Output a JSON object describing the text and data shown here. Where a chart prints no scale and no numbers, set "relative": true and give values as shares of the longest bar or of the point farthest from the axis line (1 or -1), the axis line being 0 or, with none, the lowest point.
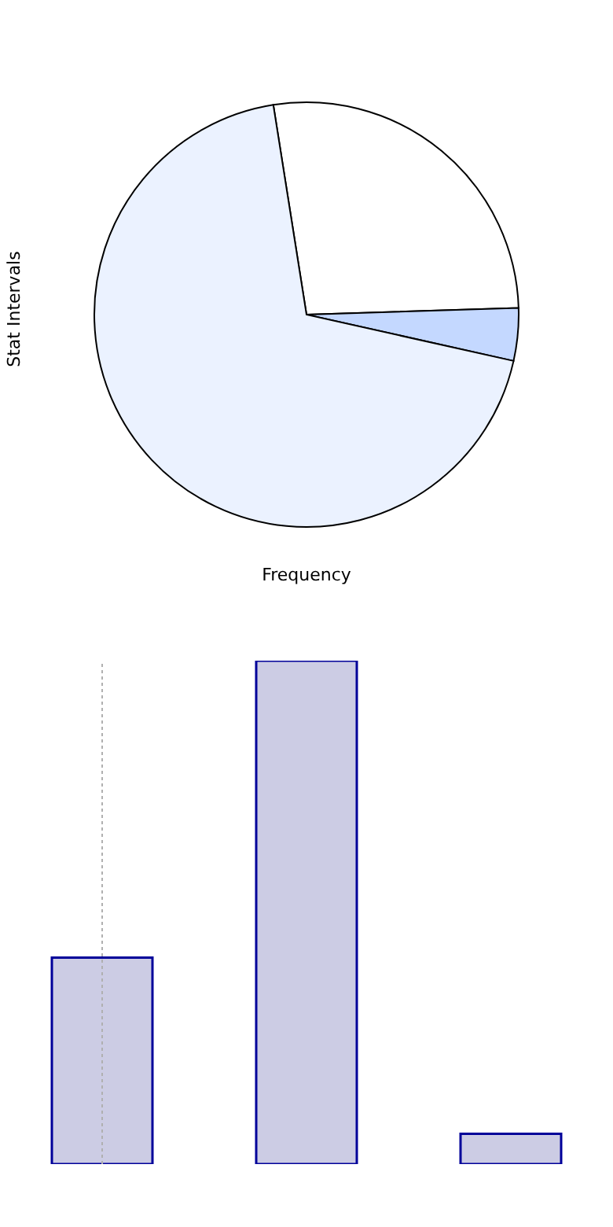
{
  "chart_data": [
    {
      "type": "pie",
      "xlabel": "Frequency",
      "ylabel": "Stat Intervals",
      "categories": [
        null,
        null,
        null
      ],
      "values": [
        27,
        4,
        69
      ],
      "colors": [
        "#ffffff",
        "#c4d8ff",
        "#ebf2ff"
      ]
    },
    {
      "type": "bar",
      "relative": true,
      "categories": [
        null,
        null,
        null
      ],
      "values": [
        0.41,
        1,
        0.06
      ],
      "color": "#cccce4"
    }
  ]
}
